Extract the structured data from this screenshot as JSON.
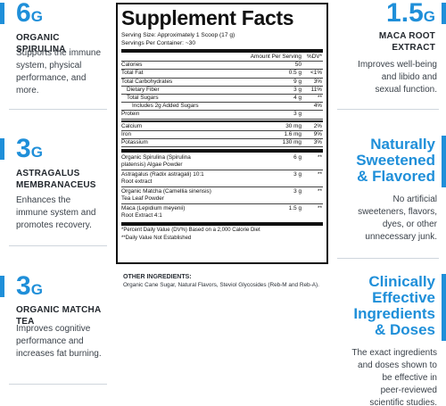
{
  "left": [
    {
      "amount": "6",
      "unit": "G",
      "label": "ORGANIC SPIRULINA",
      "desc": [
        "Supports the immune",
        "system, physical",
        "performance, and",
        "more."
      ]
    },
    {
      "amount": "3",
      "unit": "G",
      "label_lines": [
        "ASTRAGALUS",
        "MEMBRANACEUS"
      ],
      "desc": [
        "Enhances the",
        "immune system and",
        "promotes recovery."
      ]
    },
    {
      "amount": "3",
      "unit": "G",
      "label": "ORGANIC MATCHA TEA",
      "desc": [
        "Improves cognitive",
        "performance and",
        "increases fat burning."
      ]
    }
  ],
  "right": {
    "maca": {
      "amount": "1.5",
      "unit": "G",
      "label_lines": [
        "MACA ROOT",
        "EXTRACT"
      ],
      "desc": [
        "Improves well-being",
        "and libido and",
        "sexual function."
      ]
    },
    "natural": {
      "headline": [
        "Naturally",
        "Sweetened",
        "& Flavored"
      ],
      "desc": [
        "No artificial",
        "sweeteners, flavors,",
        "dyes, or other",
        "unnecessary junk."
      ]
    },
    "clinical": {
      "headline": [
        "Clinically",
        "Effective",
        "Ingredients",
        "& Doses"
      ],
      "desc": [
        "The exact ingredients",
        "and doses shown to",
        "be effective in",
        "peer-reviewed",
        "scientific studies."
      ]
    }
  },
  "facts": {
    "title": "Supplement Facts",
    "serving_size": "Serving Size: Approximately 1 Scoop (17 g)",
    "servings_per_container": "Servings Per Container: ~30",
    "col_amount": "Amount Per Serving",
    "col_dv": "%DV*",
    "rows": [
      {
        "name": "Calories",
        "amount": "50",
        "dv": ""
      },
      {
        "name": "Total Fat",
        "amount": "0.5 g",
        "dv": "<1%"
      },
      {
        "name": "Total Carbohydrates",
        "amount": "9 g",
        "dv": "3%"
      },
      {
        "name": "Dietary Fiber",
        "amount": "3 g",
        "dv": "11%"
      },
      {
        "name": "Total Sugars",
        "amount": "4 g",
        "dv": "**"
      },
      {
        "name": "Includes 2g Added Sugars",
        "amount": "",
        "dv": "4%"
      },
      {
        "name": "Protein",
        "amount": "3 g",
        "dv": ""
      },
      {
        "name": "Calcium",
        "amount": "30 mg",
        "dv": "2%"
      },
      {
        "name": "Iron",
        "amount": "1.6 mg",
        "dv": "9%"
      },
      {
        "name": "Potassium",
        "amount": "130 mg",
        "dv": "3%"
      }
    ],
    "ingredients": [
      {
        "l1": "Organic Spirulina (Spirulina",
        "l2": "platensis) Algae Powder",
        "amount": "6 g",
        "dv": "**"
      },
      {
        "l1": "Astragalus (Radix astragali) 10:1",
        "l2": "Root extract",
        "amount": "3 g",
        "dv": "**"
      },
      {
        "l1": "Organic Matcha (Camellia sinensis)",
        "l2": "Tea Leaf Powder",
        "amount": "3 g",
        "dv": "**"
      },
      {
        "l1": "Maca (Lepidium meyenii)",
        "l2": "Root Extract 4:1",
        "amount": "1.5 g",
        "dv": "**"
      }
    ],
    "note1": "*Percent Daily Value (DV%) Based on a 2,000 Calorie Diet",
    "note2": "**Daily Value Not Established"
  },
  "other": {
    "heading": "OTHER INGREDIENTS:",
    "text": "Organic Cane Sugar, Natural Flavors, Steviol Glycosides (Reb-M and Reb-A)."
  },
  "colors": {
    "accent": "#1f8fd9"
  }
}
